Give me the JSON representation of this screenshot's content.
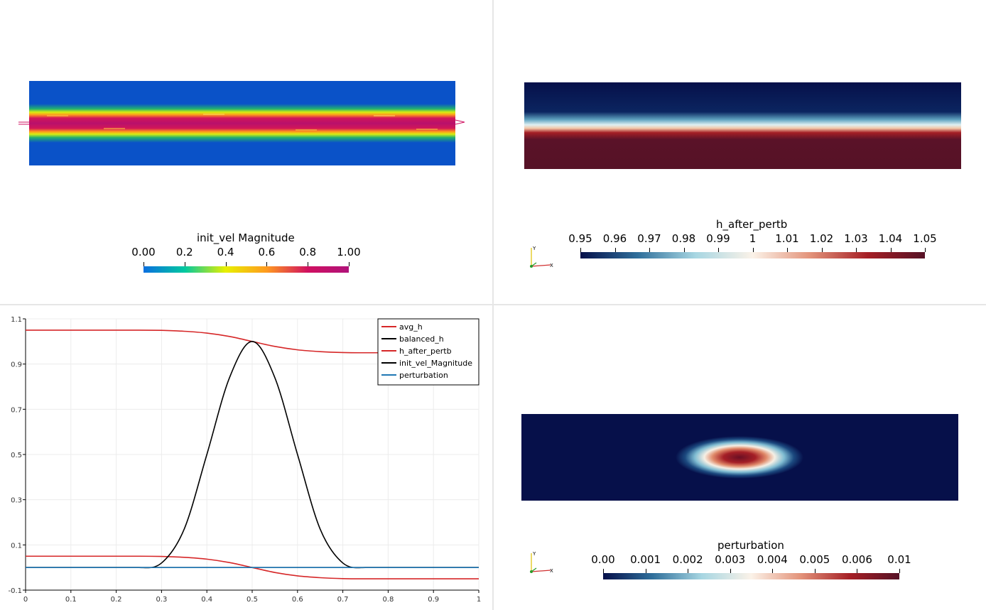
{
  "views": {
    "top_left": {
      "colorbar": {
        "title": "init_vel Magnitude",
        "ticks": [
          "0.00",
          "0.2",
          "0.4",
          "0.6",
          "0.8",
          "1.00"
        ],
        "colormap": "rainbow",
        "colors": [
          "#0a6fe0",
          "#00c8a0",
          "#e8f000",
          "#ff9a20",
          "#d01060",
          "#b0127a"
        ]
      }
    },
    "top_right": {
      "colorbar": {
        "title": "h_after_pertb",
        "ticks": [
          "0.95",
          "0.96",
          "0.97",
          "0.98",
          "0.99",
          "1",
          "1.01",
          "1.02",
          "1.03",
          "1.04",
          "1.05"
        ],
        "colormap": "blue-white-red",
        "colors": [
          "#06104a",
          "#2f6f9b",
          "#a7d6e2",
          "#fbf2e8",
          "#e3937a",
          "#a51f26",
          "#561226"
        ]
      },
      "orientation_axes": {
        "y_label": "Y",
        "x_label": "X"
      }
    },
    "bottom_right": {
      "colorbar": {
        "title": "perturbation",
        "ticks": [
          "0.00",
          "0.001",
          "0.002",
          "0.003",
          "0.004",
          "0.005",
          "0.006",
          "0.01"
        ],
        "colormap": "blue-white-red",
        "colors": [
          "#06104a",
          "#2f6f9b",
          "#a7d6e2",
          "#fbf2e8",
          "#e3937a",
          "#a51f26",
          "#561226"
        ]
      },
      "orientation_axes": {
        "y_label": "Y",
        "x_label": "X"
      }
    }
  },
  "chart_data": {
    "type": "line",
    "xlim": [
      0,
      1
    ],
    "ylim": [
      -0.1,
      1.1
    ],
    "xticks": [
      0,
      0.1,
      0.2,
      0.3,
      0.4,
      0.5,
      0.6,
      0.7,
      0.8,
      0.9,
      1
    ],
    "xtick_labels": [
      "0",
      "0.1",
      "0.2",
      "0.3",
      "0.4",
      "0.5",
      "0.6",
      "0.7",
      "0.8",
      "0.9",
      "1"
    ],
    "yticks": [
      -0.1,
      0.1,
      0.3,
      0.5,
      0.7,
      0.9,
      1.1
    ],
    "ytick_labels": [
      "-0.1",
      "0.1",
      "0.3",
      "0.5",
      "0.7",
      "0.9",
      "1.1"
    ],
    "grid": true,
    "legend_position": "top-right",
    "x": [
      0,
      0.05,
      0.1,
      0.15,
      0.2,
      0.25,
      0.3,
      0.35,
      0.4,
      0.45,
      0.5,
      0.55,
      0.6,
      0.65,
      0.7,
      0.75,
      0.8,
      0.85,
      0.9,
      0.95,
      1
    ],
    "series": [
      {
        "name": "avg_h",
        "color": "#d62728",
        "values": [
          0.05,
          0.05,
          0.05,
          0.05,
          0.05,
          0.05,
          0.049,
          0.045,
          0.037,
          0.022,
          0.0,
          -0.022,
          -0.037,
          -0.045,
          -0.049,
          -0.05,
          -0.05,
          -0.05,
          -0.05,
          -0.05,
          -0.05
        ]
      },
      {
        "name": "balanced_h",
        "color": "#000000",
        "values": [
          0.0,
          0.0,
          0.0,
          0.0,
          0.0,
          0.0,
          0.0,
          0.0,
          0.0,
          0.0,
          0.0,
          0.0,
          0.0,
          0.0,
          0.0,
          0.0,
          0.0,
          0.0,
          0.0,
          0.0,
          0.0
        ]
      },
      {
        "name": "h_after_pertb",
        "color": "#d62728",
        "values": [
          1.05,
          1.05,
          1.05,
          1.05,
          1.05,
          1.05,
          1.049,
          1.045,
          1.037,
          1.022,
          1.0,
          0.978,
          0.963,
          0.955,
          0.951,
          0.95,
          0.95,
          0.95,
          0.95,
          0.95,
          0.95
        ]
      },
      {
        "name": "init_vel_Magnitude",
        "color": "#000000",
        "values": [
          0.0,
          0.0,
          0.0,
          0.0,
          0.0,
          0.0,
          0.02,
          0.17,
          0.5,
          0.84,
          1.0,
          0.84,
          0.5,
          0.17,
          0.02,
          0.0,
          0.0,
          0.0,
          0.0,
          0.0,
          0.0
        ]
      },
      {
        "name": "perturbation",
        "color": "#1f77b4",
        "values": [
          0.0,
          0.0,
          0.0,
          0.0,
          0.0,
          0.0,
          0.0,
          0.0,
          0.0,
          0.0,
          0.0,
          0.0,
          0.0,
          0.0,
          0.0,
          0.0,
          0.0,
          0.0,
          0.0,
          0.0,
          0.0
        ]
      }
    ]
  }
}
